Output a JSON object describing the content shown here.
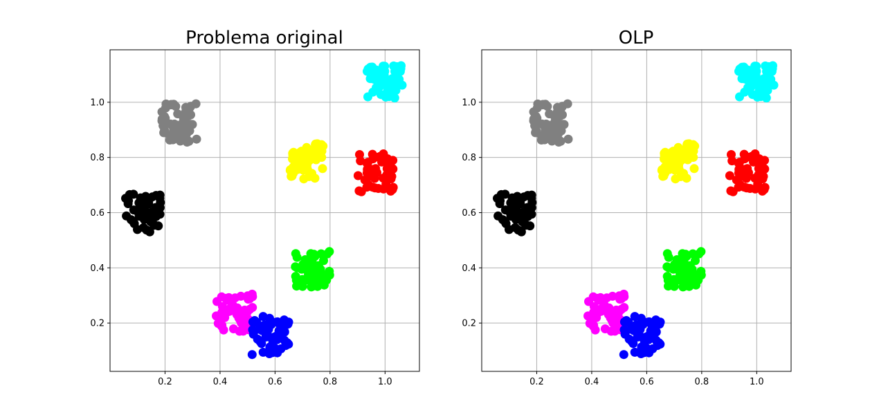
{
  "chart_data": [
    {
      "type": "scatter",
      "title": "Problema original",
      "xlabel": "",
      "ylabel": "",
      "xlim": [
        0.0,
        1.125
      ],
      "ylim": [
        0.025,
        1.19
      ],
      "xticks": [
        0.2,
        0.4,
        0.6,
        0.8,
        1.0
      ],
      "yticks": [
        0.2,
        0.4,
        0.6,
        0.8,
        1.0
      ],
      "xtick_labels": [
        "0.2",
        "0.4",
        "0.6",
        "0.8",
        "1.0"
      ],
      "ytick_labels": [
        "0.2",
        "0.4",
        "0.6",
        "0.8",
        "1.0"
      ],
      "grid": true,
      "series": [
        {
          "color": "#808080",
          "center": [
            0.25,
            0.925
          ],
          "spread": [
            0.065,
            0.07
          ]
        },
        {
          "color": "#00ffff",
          "center": [
            1.0,
            1.075
          ],
          "spread": [
            0.07,
            0.06
          ]
        },
        {
          "color": "#ffff00",
          "center": [
            0.715,
            0.785
          ],
          "spread": [
            0.06,
            0.065
          ]
        },
        {
          "color": "#ff0000",
          "center": [
            0.965,
            0.745
          ],
          "spread": [
            0.065,
            0.07
          ]
        },
        {
          "color": "#000000",
          "center": [
            0.12,
            0.6
          ],
          "spread": [
            0.065,
            0.07
          ]
        },
        {
          "color": "#00ff00",
          "center": [
            0.735,
            0.395
          ],
          "spread": [
            0.065,
            0.065
          ]
        },
        {
          "color": "#ff00ff",
          "center": [
            0.455,
            0.235
          ],
          "spread": [
            0.07,
            0.07
          ]
        },
        {
          "color": "#0000ff",
          "center": [
            0.58,
            0.155
          ],
          "spread": [
            0.07,
            0.07
          ]
        }
      ]
    },
    {
      "type": "scatter",
      "title": "OLP",
      "xlabel": "",
      "ylabel": "",
      "xlim": [
        0.0,
        1.125
      ],
      "ylim": [
        0.025,
        1.19
      ],
      "xticks": [
        0.2,
        0.4,
        0.6,
        0.8,
        1.0
      ],
      "yticks": [
        0.2,
        0.4,
        0.6,
        0.8,
        1.0
      ],
      "xtick_labels": [
        "0.2",
        "0.4",
        "0.6",
        "0.8",
        "1.0"
      ],
      "ytick_labels": [
        "0.2",
        "0.4",
        "0.6",
        "0.8",
        "1.0"
      ],
      "grid": true,
      "series": [
        {
          "color": "#808080",
          "center": [
            0.25,
            0.925
          ],
          "spread": [
            0.065,
            0.07
          ]
        },
        {
          "color": "#00ffff",
          "center": [
            1.0,
            1.075
          ],
          "spread": [
            0.07,
            0.06
          ]
        },
        {
          "color": "#ffff00",
          "center": [
            0.715,
            0.785
          ],
          "spread": [
            0.06,
            0.065
          ]
        },
        {
          "color": "#ff0000",
          "center": [
            0.965,
            0.745
          ],
          "spread": [
            0.065,
            0.07
          ]
        },
        {
          "color": "#000000",
          "center": [
            0.12,
            0.6
          ],
          "spread": [
            0.065,
            0.07
          ]
        },
        {
          "color": "#00ff00",
          "center": [
            0.735,
            0.395
          ],
          "spread": [
            0.065,
            0.065
          ]
        },
        {
          "color": "#ff00ff",
          "center": [
            0.455,
            0.235
          ],
          "spread": [
            0.07,
            0.07
          ]
        },
        {
          "color": "#0000ff",
          "center": [
            0.58,
            0.155
          ],
          "spread": [
            0.07,
            0.07
          ]
        }
      ]
    }
  ]
}
